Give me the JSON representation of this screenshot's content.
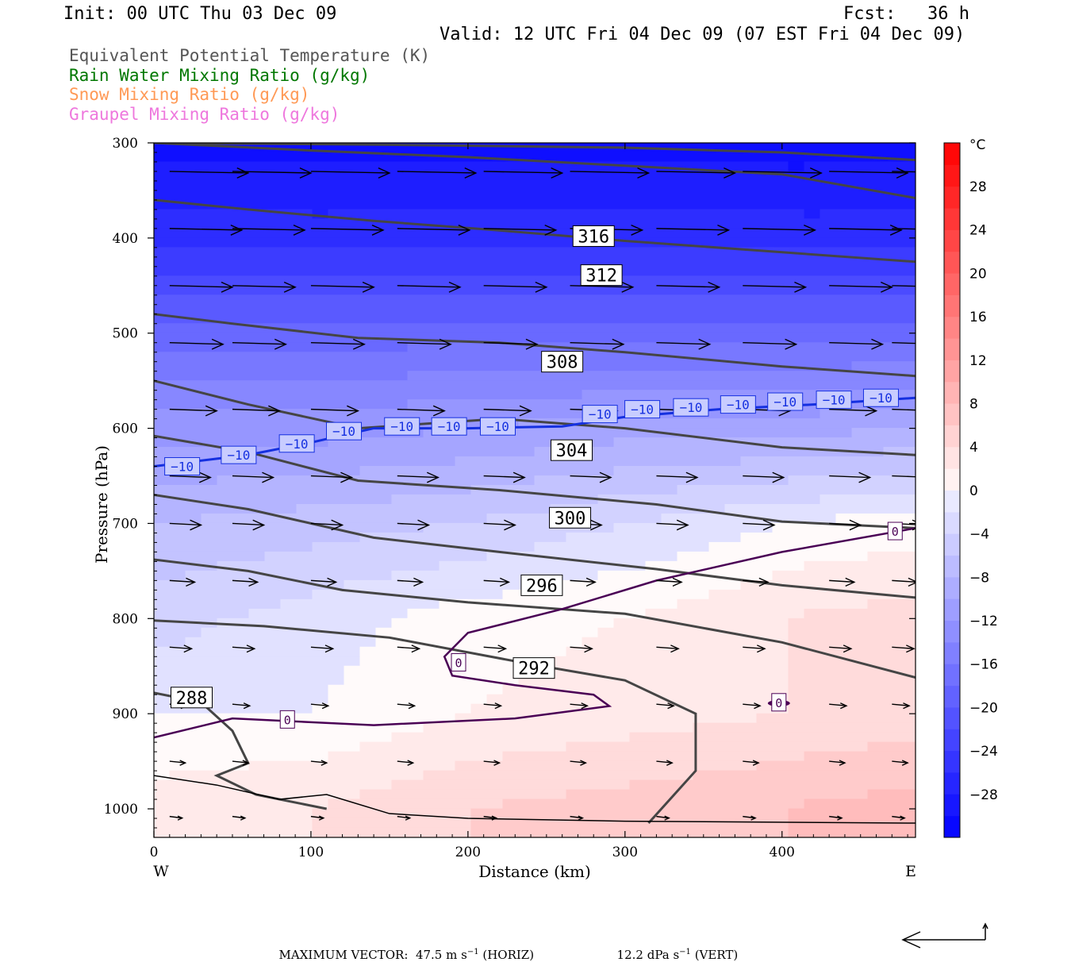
{
  "header": {
    "init": "Init: 00 UTC Thu 03 Dec 09",
    "fcst": "Fcst:   36 h",
    "valid": "Valid: 12 UTC Fri 04 Dec 09 (07 EST Fri 04 Dec 09)"
  },
  "fields": [
    {
      "label": "Equivalent Potential Temperature (K)",
      "color": "#555555"
    },
    {
      "label": "Rain Water Mixing Ratio (g/kg)",
      "color": "#007700"
    },
    {
      "label": "Snow Mixing Ratio (g/kg)",
      "color": "#ff9955"
    },
    {
      "label": "Graupel Mixing Ratio (g/kg)",
      "color": "#ee77dd"
    }
  ],
  "chart_data": {
    "type": "cross-section",
    "xlabel": "Distance (km)",
    "ylabel": "Pressure (hPa)",
    "x_ticks": [
      0,
      100,
      200,
      300,
      400
    ],
    "xlim": [
      0,
      485
    ],
    "y_ticks": [
      300,
      400,
      500,
      600,
      700,
      800,
      900,
      1000
    ],
    "ylim": [
      300,
      1030
    ],
    "left_end_label": "W",
    "right_end_label": "E",
    "colorbar": {
      "unit": "°C",
      "tick_labels": [
        "28",
        "24",
        "20",
        "16",
        "12",
        "8",
        "4",
        "0",
        "−4",
        "−8",
        "−12",
        "−16",
        "−20",
        "−24",
        "−28"
      ],
      "levels": [
        -32,
        -30,
        -28,
        -26,
        -24,
        -22,
        -20,
        -18,
        -16,
        -14,
        -12,
        -10,
        -8,
        -6,
        -4,
        -2,
        0,
        2,
        4,
        6,
        8,
        10,
        12,
        14,
        16,
        18,
        20,
        22,
        24,
        26,
        28,
        30,
        32
      ],
      "cold_color": "#0000ff",
      "warm_color": "#ff0000"
    },
    "theta_e_contours": [
      {
        "label": "288",
        "label_at": [
          24,
          883
        ],
        "points": [
          [
            0,
            878
          ],
          [
            30,
            888
          ],
          [
            50,
            918
          ],
          [
            60,
            952
          ],
          [
            40,
            965
          ],
          [
            65,
            985
          ],
          [
            110,
            1000
          ]
        ]
      },
      {
        "label": "292",
        "label_at": [
          242,
          852
        ],
        "points": [
          [
            0,
            802
          ],
          [
            70,
            808
          ],
          [
            150,
            820
          ],
          [
            240,
            848
          ],
          [
            300,
            865
          ],
          [
            345,
            900
          ],
          [
            345,
            960
          ],
          [
            315,
            1015
          ]
        ]
      },
      {
        "label": "296",
        "label_at": [
          247,
          765
        ],
        "points": [
          [
            0,
            738
          ],
          [
            60,
            750
          ],
          [
            120,
            770
          ],
          [
            200,
            783
          ],
          [
            300,
            795
          ],
          [
            400,
            825
          ],
          [
            485,
            862
          ]
        ]
      },
      {
        "label": "300",
        "label_at": [
          265,
          694
        ],
        "points": [
          [
            0,
            670
          ],
          [
            60,
            685
          ],
          [
            140,
            715
          ],
          [
            220,
            730
          ],
          [
            320,
            748
          ],
          [
            400,
            765
          ],
          [
            485,
            778
          ]
        ]
      },
      {
        "label": "304",
        "label_at": [
          266,
          623
        ],
        "points": [
          [
            0,
            608
          ],
          [
            60,
            625
          ],
          [
            130,
            655
          ],
          [
            220,
            665
          ],
          [
            320,
            680
          ],
          [
            400,
            698
          ],
          [
            485,
            705
          ]
        ]
      },
      {
        "label": "308",
        "label_at": [
          260,
          530
        ],
        "points": [
          [
            0,
            550
          ],
          [
            60,
            575
          ],
          [
            130,
            600
          ],
          [
            220,
            590
          ],
          [
            300,
            600
          ],
          [
            400,
            620
          ],
          [
            485,
            628
          ]
        ]
      },
      {
        "label": "312",
        "label_at": [
          285,
          439
        ],
        "points": [
          [
            0,
            480
          ],
          [
            50,
            490
          ],
          [
            130,
            505
          ],
          [
            220,
            510
          ],
          [
            300,
            520
          ],
          [
            400,
            535
          ],
          [
            485,
            545
          ]
        ]
      },
      {
        "label": "316",
        "label_at": [
          280,
          398
        ],
        "points": [
          [
            0,
            360
          ],
          [
            60,
            370
          ],
          [
            140,
            382
          ],
          [
            220,
            392
          ],
          [
            300,
            403
          ],
          [
            400,
            415
          ],
          [
            485,
            425
          ]
        ]
      },
      {
        "label": "",
        "label_at": null,
        "points": [
          [
            0,
            300
          ],
          [
            100,
            308
          ],
          [
            200,
            315
          ],
          [
            300,
            324
          ],
          [
            400,
            333
          ],
          [
            485,
            358
          ]
        ]
      },
      {
        "label": "",
        "label_at": null,
        "points": [
          [
            0,
            300
          ],
          [
            150,
            302
          ],
          [
            300,
            305
          ],
          [
            400,
            310
          ],
          [
            485,
            318
          ]
        ]
      }
    ],
    "isotherm_minus10": {
      "label": "−10",
      "points": [
        [
          0,
          640
        ],
        [
          60,
          628
        ],
        [
          100,
          615
        ],
        [
          140,
          600
        ],
        [
          200,
          600
        ],
        [
          260,
          598
        ],
        [
          300,
          588
        ],
        [
          360,
          580
        ],
        [
          420,
          575
        ],
        [
          485,
          568
        ]
      ],
      "label_positions": [
        [
          18,
          640
        ],
        [
          54,
          628
        ],
        [
          91,
          616
        ],
        [
          121,
          603
        ],
        [
          158,
          598
        ],
        [
          188,
          598
        ],
        [
          219,
          598
        ],
        [
          284,
          585
        ],
        [
          311,
          580
        ],
        [
          342,
          578
        ],
        [
          372,
          575
        ],
        [
          402,
          572
        ],
        [
          433,
          570
        ],
        [
          463,
          568
        ]
      ]
    },
    "zero_isotherm": {
      "label": "0",
      "label_positions": [
        [
          85,
          906
        ],
        [
          194,
          846
        ],
        [
          398,
          888
        ],
        [
          472,
          708
        ]
      ]
    },
    "temperature_field": [
      {
        "p": 300,
        "t": [
          -30,
          -30,
          -30,
          -30,
          -30,
          -30
        ]
      },
      {
        "p": 400,
        "t": [
          -26,
          -26,
          -26,
          -26,
          -26,
          -26
        ]
      },
      {
        "p": 500,
        "t": [
          -18,
          -18,
          -18,
          -18,
          -18,
          -18
        ]
      },
      {
        "p": 600,
        "t": [
          -12,
          -12,
          -11,
          -10,
          -10,
          -9
        ]
      },
      {
        "p": 700,
        "t": [
          -7,
          -6,
          -5,
          -3,
          -1,
          0
        ]
      },
      {
        "p": 800,
        "t": [
          -4,
          -2,
          0,
          1,
          3,
          4
        ]
      },
      {
        "p": 900,
        "t": [
          -1,
          -1,
          1,
          2,
          3,
          4
        ]
      },
      {
        "p": 1000,
        "t": [
          2,
          3,
          5,
          6,
          7,
          8
        ]
      }
    ],
    "temperature_x": [
      0,
      100,
      200,
      300,
      400,
      485
    ],
    "wind_vector_rows": [
      {
        "p": 330,
        "len_km": 50
      },
      {
        "p": 390,
        "len_km": 46
      },
      {
        "p": 450,
        "len_km": 40
      },
      {
        "p": 510,
        "len_km": 34
      },
      {
        "p": 580,
        "len_km": 30
      },
      {
        "p": 650,
        "len_km": 26
      },
      {
        "p": 700,
        "len_km": 20
      },
      {
        "p": 760,
        "len_km": 16
      },
      {
        "p": 830,
        "len_km": 14
      },
      {
        "p": 890,
        "len_km": 11
      },
      {
        "p": 950,
        "len_km": 10
      },
      {
        "p": 1008,
        "len_km": 8
      }
    ],
    "wind_vector_columns": [
      10,
      50,
      100,
      155,
      210,
      265,
      320,
      375,
      430,
      470
    ]
  },
  "footer": {
    "max_vector_label": "MAXIMUM VECTOR:",
    "horiz_value": "47.5",
    "horiz_unit": "m s",
    "horiz_exp": "−1",
    "horiz_tag": "(HORIZ)",
    "vert_value": "12.2",
    "vert_unit": "dPa s",
    "vert_exp": "−1",
    "vert_tag": "(VERT)"
  }
}
